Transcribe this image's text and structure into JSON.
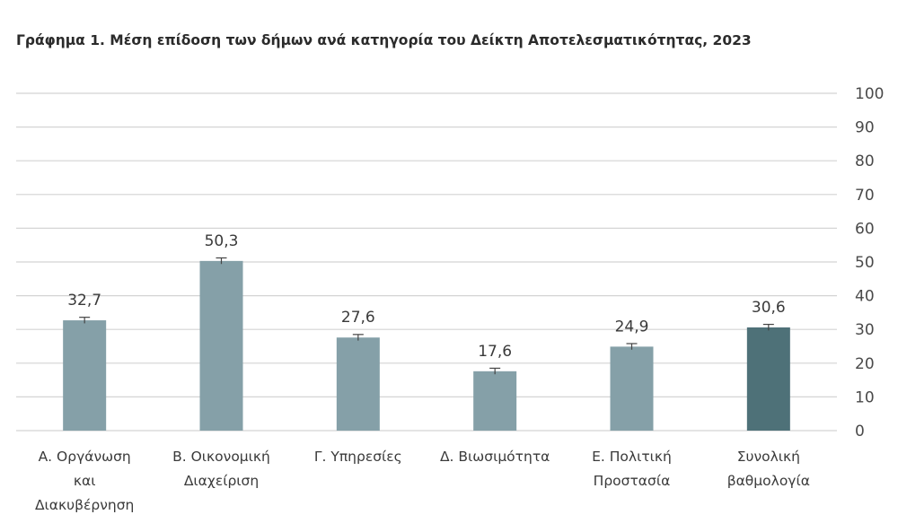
{
  "chart_data": {
    "type": "bar",
    "title": "Γράφημα 1. Μέση επίδοση των δήμων ανά κατηγορία του Δείκτη Αποτελεσματικότητας, 2023",
    "xlabel": "",
    "ylabel": "",
    "ylim": [
      0,
      100
    ],
    "yticks": [
      "0",
      "10",
      "20",
      "30",
      "40",
      "50",
      "60",
      "70",
      "80",
      "90",
      "100"
    ],
    "grid": true,
    "y_axis_position": "right",
    "error_bars": true,
    "categories": [
      [
        "Α. Οργάνωση",
        "και",
        "Διακυβέρνηση"
      ],
      [
        "Β. Οικονομική",
        "Διαχείριση"
      ],
      [
        "Γ. Υπηρεσίες"
      ],
      [
        "Δ. Βιωσιμότητα"
      ],
      [
        "Ε. Πολιτική",
        "Προστασία"
      ],
      [
        "Συνολική",
        "βαθμολογία"
      ]
    ],
    "values": [
      32.7,
      50.3,
      27.6,
      17.6,
      24.9,
      30.6
    ],
    "value_labels": [
      "32,7",
      "50,3",
      "27,6",
      "17,6",
      "24,9",
      "30,6"
    ],
    "colors": {
      "bar": "#85a0a8",
      "bar_highlight": "#4e7178",
      "grid": "#d4d4d4",
      "error_bar": "#444444"
    },
    "highlight_index": 5
  }
}
